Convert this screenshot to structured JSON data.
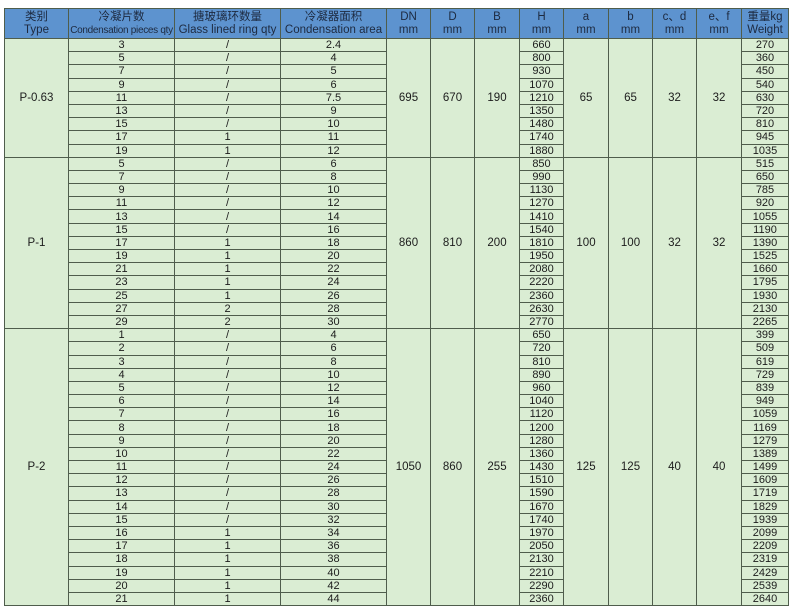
{
  "headers": [
    {
      "cn": "类别",
      "en": "Type"
    },
    {
      "cn": "冷凝片数",
      "en": "Condensation pieces qty"
    },
    {
      "cn": "搪玻璃环数量",
      "en": "Glass lined ring qty"
    },
    {
      "cn": "冷凝器面积",
      "en": "Condensation area"
    },
    {
      "cn": "DN",
      "en": "mm"
    },
    {
      "cn": "D",
      "en": "mm"
    },
    {
      "cn": "B",
      "en": "mm"
    },
    {
      "cn": "H",
      "en": "mm"
    },
    {
      "cn": "a",
      "en": "mm"
    },
    {
      "cn": "b",
      "en": "mm"
    },
    {
      "cn": "c、d",
      "en": "mm"
    },
    {
      "cn": "e、f",
      "en": "mm"
    },
    {
      "cn": "重量kg",
      "en": "Weight"
    }
  ],
  "groups": [
    {
      "type": "P-0.63",
      "DN": "695",
      "D": "670",
      "B": "190",
      "a": "65",
      "b": "65",
      "cd": "32",
      "ef": "32",
      "rows": [
        [
          "3",
          "/",
          "2.4",
          "660",
          "270"
        ],
        [
          "5",
          "/",
          "4",
          "800",
          "360"
        ],
        [
          "7",
          "/",
          "5",
          "930",
          "450"
        ],
        [
          "9",
          "/",
          "6",
          "1070",
          "540"
        ],
        [
          "11",
          "/",
          "7.5",
          "1210",
          "630"
        ],
        [
          "13",
          "/",
          "9",
          "1350",
          "720"
        ],
        [
          "15",
          "/",
          "10",
          "1480",
          "810"
        ],
        [
          "17",
          "1",
          "11",
          "1740",
          "945"
        ],
        [
          "19",
          "1",
          "12",
          "1880",
          "1035"
        ]
      ]
    },
    {
      "type": "P-1",
      "DN": "860",
      "D": "810",
      "B": "200",
      "a": "100",
      "b": "100",
      "cd": "32",
      "ef": "32",
      "rows": [
        [
          "5",
          "/",
          "6",
          "850",
          "515"
        ],
        [
          "7",
          "/",
          "8",
          "990",
          "650"
        ],
        [
          "9",
          "/",
          "10",
          "1130",
          "785"
        ],
        [
          "11",
          "/",
          "12",
          "1270",
          "920"
        ],
        [
          "13",
          "/",
          "14",
          "1410",
          "1055"
        ],
        [
          "15",
          "/",
          "16",
          "1540",
          "1190"
        ],
        [
          "17",
          "1",
          "18",
          "1810",
          "1390"
        ],
        [
          "19",
          "1",
          "20",
          "1950",
          "1525"
        ],
        [
          "21",
          "1",
          "22",
          "2080",
          "1660"
        ],
        [
          "23",
          "1",
          "24",
          "2220",
          "1795"
        ],
        [
          "25",
          "1",
          "26",
          "2360",
          "1930"
        ],
        [
          "27",
          "2",
          "28",
          "2630",
          "2130"
        ],
        [
          "29",
          "2",
          "30",
          "2770",
          "2265"
        ]
      ]
    },
    {
      "type": "P-2",
      "DN": "1050",
      "D": "860",
      "B": "255",
      "a": "125",
      "b": "125",
      "cd": "40",
      "ef": "40",
      "rows": [
        [
          "1",
          "/",
          "4",
          "650",
          "399"
        ],
        [
          "2",
          "/",
          "6",
          "720",
          "509"
        ],
        [
          "3",
          "/",
          "8",
          "810",
          "619"
        ],
        [
          "4",
          "/",
          "10",
          "890",
          "729"
        ],
        [
          "5",
          "/",
          "12",
          "960",
          "839"
        ],
        [
          "6",
          "/",
          "14",
          "1040",
          "949"
        ],
        [
          "7",
          "/",
          "16",
          "1120",
          "1059"
        ],
        [
          "8",
          "/",
          "18",
          "1200",
          "1169"
        ],
        [
          "9",
          "/",
          "20",
          "1280",
          "1279"
        ],
        [
          "10",
          "/",
          "22",
          "1360",
          "1389"
        ],
        [
          "11",
          "/",
          "24",
          "1430",
          "1499"
        ],
        [
          "12",
          "/",
          "26",
          "1510",
          "1609"
        ],
        [
          "13",
          "/",
          "28",
          "1590",
          "1719"
        ],
        [
          "14",
          "/",
          "30",
          "1670",
          "1829"
        ],
        [
          "15",
          "/",
          "32",
          "1740",
          "1939"
        ],
        [
          "16",
          "1",
          "34",
          "1970",
          "2099"
        ],
        [
          "17",
          "1",
          "36",
          "2050",
          "2209"
        ],
        [
          "18",
          "1",
          "38",
          "2130",
          "2319"
        ],
        [
          "19",
          "1",
          "40",
          "2210",
          "2429"
        ],
        [
          "20",
          "1",
          "42",
          "2290",
          "2539"
        ],
        [
          "21",
          "1",
          "44",
          "2360",
          "2640"
        ]
      ]
    }
  ],
  "colors": {
    "header_bg": "#5d93cf",
    "body_bg": "#daedd3",
    "border": "#4f5d4c"
  }
}
